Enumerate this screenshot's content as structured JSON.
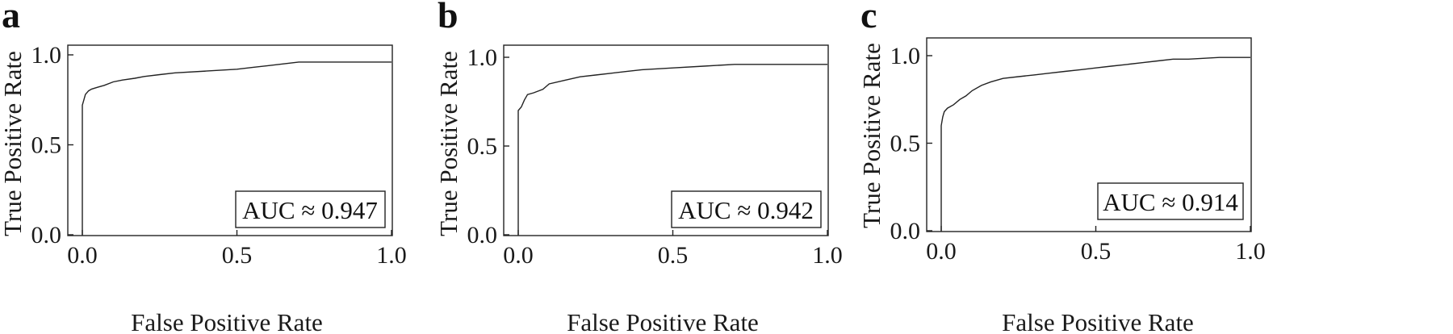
{
  "chart_data": [
    {
      "type": "line",
      "panel_label": "a",
      "xlabel": "False Positive Rate",
      "ylabel": "True Positive Rate",
      "xlim": [
        0.0,
        1.0
      ],
      "ylim": [
        0.0,
        1.0
      ],
      "xticks": [
        "0.0",
        "0.5",
        "1.0"
      ],
      "yticks": [
        "0.0",
        "0.5",
        "1.0"
      ],
      "annotation": "AUC ≈ 0.947",
      "grid": false,
      "series": [
        {
          "x": [
            0.0,
            0.0,
            0.005,
            0.01,
            0.02,
            0.03,
            0.05,
            0.07,
            0.1,
            0.13,
            0.17,
            0.2,
            0.25,
            0.3,
            0.4,
            0.5,
            0.55,
            0.6,
            0.65,
            0.7,
            0.8,
            0.9,
            1.0
          ],
          "y": [
            0.0,
            0.72,
            0.75,
            0.78,
            0.8,
            0.81,
            0.82,
            0.83,
            0.85,
            0.86,
            0.87,
            0.88,
            0.89,
            0.9,
            0.91,
            0.92,
            0.93,
            0.94,
            0.95,
            0.96,
            0.96,
            0.96,
            0.96
          ]
        }
      ]
    },
    {
      "type": "line",
      "panel_label": "b",
      "xlabel": "False Positive Rate",
      "ylabel": "True Positive Rate",
      "xlim": [
        0.0,
        1.0
      ],
      "ylim": [
        0.0,
        1.0
      ],
      "xticks": [
        "0.0",
        "0.5",
        "1.0"
      ],
      "yticks": [
        "0.0",
        "0.5",
        "1.0"
      ],
      "annotation": "AUC ≈ 0.942",
      "grid": false,
      "series": [
        {
          "x": [
            0.0,
            0.0,
            0.01,
            0.02,
            0.03,
            0.05,
            0.08,
            0.1,
            0.15,
            0.2,
            0.25,
            0.3,
            0.35,
            0.4,
            0.5,
            0.6,
            0.7,
            0.8,
            0.9,
            1.0
          ],
          "y": [
            0.0,
            0.7,
            0.72,
            0.76,
            0.79,
            0.8,
            0.82,
            0.85,
            0.87,
            0.89,
            0.9,
            0.91,
            0.92,
            0.93,
            0.94,
            0.95,
            0.96,
            0.96,
            0.96,
            0.96
          ]
        }
      ]
    },
    {
      "type": "line",
      "panel_label": "c",
      "xlabel": "False Positive Rate",
      "ylabel": "True Positive Rate",
      "xlim": [
        0.0,
        1.0
      ],
      "ylim": [
        0.0,
        1.0
      ],
      "xticks": [
        "0.0",
        "0.5",
        "1.0"
      ],
      "yticks": [
        "0.0",
        "0.5",
        "1.0"
      ],
      "annotation": "AUC ≈ 0.914",
      "grid": false,
      "series": [
        {
          "x": [
            0.0,
            0.0,
            0.005,
            0.01,
            0.02,
            0.04,
            0.06,
            0.08,
            0.1,
            0.13,
            0.16,
            0.2,
            0.25,
            0.3,
            0.35,
            0.4,
            0.45,
            0.5,
            0.55,
            0.6,
            0.65,
            0.7,
            0.75,
            0.8,
            0.9,
            1.0
          ],
          "y": [
            0.0,
            0.6,
            0.65,
            0.68,
            0.7,
            0.72,
            0.75,
            0.77,
            0.8,
            0.83,
            0.85,
            0.87,
            0.88,
            0.89,
            0.9,
            0.91,
            0.92,
            0.93,
            0.94,
            0.95,
            0.96,
            0.97,
            0.98,
            0.98,
            0.99,
            0.99
          ]
        }
      ]
    }
  ]
}
